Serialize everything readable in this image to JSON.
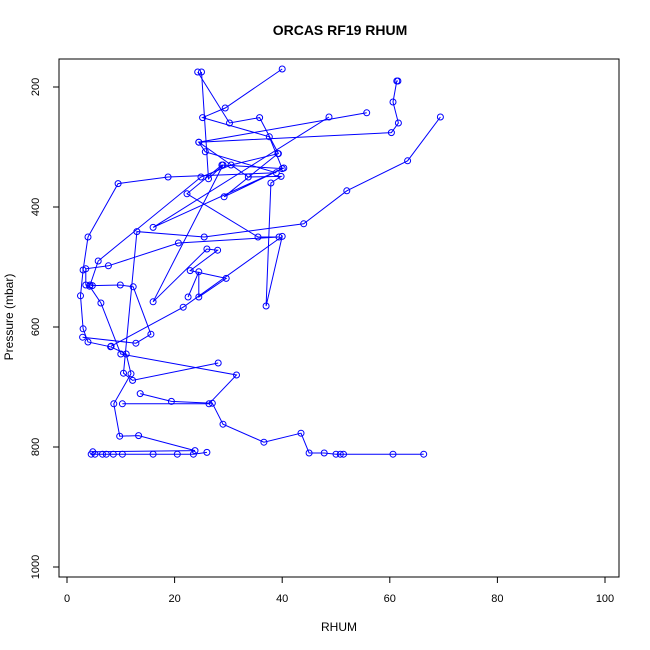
{
  "chart_data": {
    "type": "line",
    "title": "ORCAS RF19 RHUM",
    "xlabel": "RHUM",
    "ylabel": "Pressure (mbar)",
    "xlim": [
      0,
      100
    ],
    "ylim": [
      1000,
      150
    ],
    "y_reversed": true,
    "x_ticks": [
      0,
      20,
      40,
      60,
      80,
      100
    ],
    "y_ticks": [
      200,
      400,
      600,
      800,
      1000
    ],
    "grid": false,
    "legend": "none",
    "color": "#0000ff",
    "marker": "open-circle",
    "series": [
      {
        "x": [
          61.5,
          61.3,
          60.6,
          61.6,
          60.3,
          24.5,
          25.7,
          38.9,
          18.8,
          9.5,
          3.9,
          3.0,
          2.5,
          3.0,
          3.9,
          8.1,
          11.0,
          11.9,
          8.7,
          9.8,
          13.3,
          23.8,
          4.8,
          4.5,
          5.2,
          6.6,
          7.3,
          8.6,
          10.3,
          16.0,
          20.5,
          23.5,
          26.0
        ],
        "y": [
          190,
          190,
          225,
          260,
          276,
          292,
          308,
          343,
          350,
          361,
          450,
          505,
          548,
          603,
          625,
          633,
          645,
          678,
          728,
          782,
          781,
          806,
          808,
          812,
          812,
          812,
          812,
          812,
          812,
          812,
          812,
          812,
          809
        ]
      },
      {
        "x": [
          40.0,
          29.4,
          25.2,
          37.6,
          40.0,
          28.8,
          22.3,
          35.5,
          39.4,
          20.7,
          7.7,
          3.5,
          3.5,
          4.2,
          6.3,
          10.0,
          31.5,
          26.4,
          10.3
        ],
        "y": [
          170,
          235,
          251,
          283,
          336,
          330,
          378,
          450,
          450,
          460,
          498,
          503,
          530,
          532,
          560,
          645,
          680,
          728,
          728
        ]
      },
      {
        "x": [
          24.3,
          30.2,
          35.8,
          39.3,
          30.5,
          24.9,
          5.8,
          4.3,
          4.7,
          9.9,
          12.3,
          15.6,
          12.8,
          2.9
        ],
        "y": [
          175,
          260,
          251,
          311,
          330,
          350,
          490,
          530,
          531,
          530,
          533,
          612,
          627,
          617
        ]
      },
      {
        "x": [
          69.4,
          63.3,
          52.0,
          44.0,
          25.5,
          13.0,
          10.5,
          12.2,
          28.1
        ],
        "y": [
          250,
          323,
          373,
          428,
          450,
          441,
          677,
          689,
          660
        ]
      },
      {
        "x": [
          55.7,
          24.5,
          33.7,
          39.8,
          37.9,
          37.0,
          40.0,
          21.6,
          8.2
        ],
        "y": [
          243,
          292,
          350,
          349,
          360,
          565,
          449,
          567,
          632
        ]
      },
      {
        "x": [
          25.0,
          26.3,
          29.0,
          16.0,
          26.0,
          28.0,
          22.9,
          29.6,
          24.5,
          24.5,
          22.5
        ],
        "y": [
          175,
          353,
          330,
          558,
          470,
          472,
          506,
          519,
          550,
          508,
          550
        ]
      },
      {
        "x": [
          13.6,
          19.4,
          27.0,
          29.0,
          36.6,
          43.5,
          45.0,
          47.8,
          50.0,
          50.8,
          51.4,
          60.6,
          66.3
        ],
        "y": [
          711,
          724,
          727,
          762,
          792,
          777,
          810,
          810,
          812,
          812,
          812,
          812,
          812
        ]
      },
      {
        "x": [
          48.7,
          16.0,
          40.3,
          29.2,
          39.2
        ],
        "y": [
          250,
          434,
          335,
          383,
          311
        ]
      }
    ]
  }
}
